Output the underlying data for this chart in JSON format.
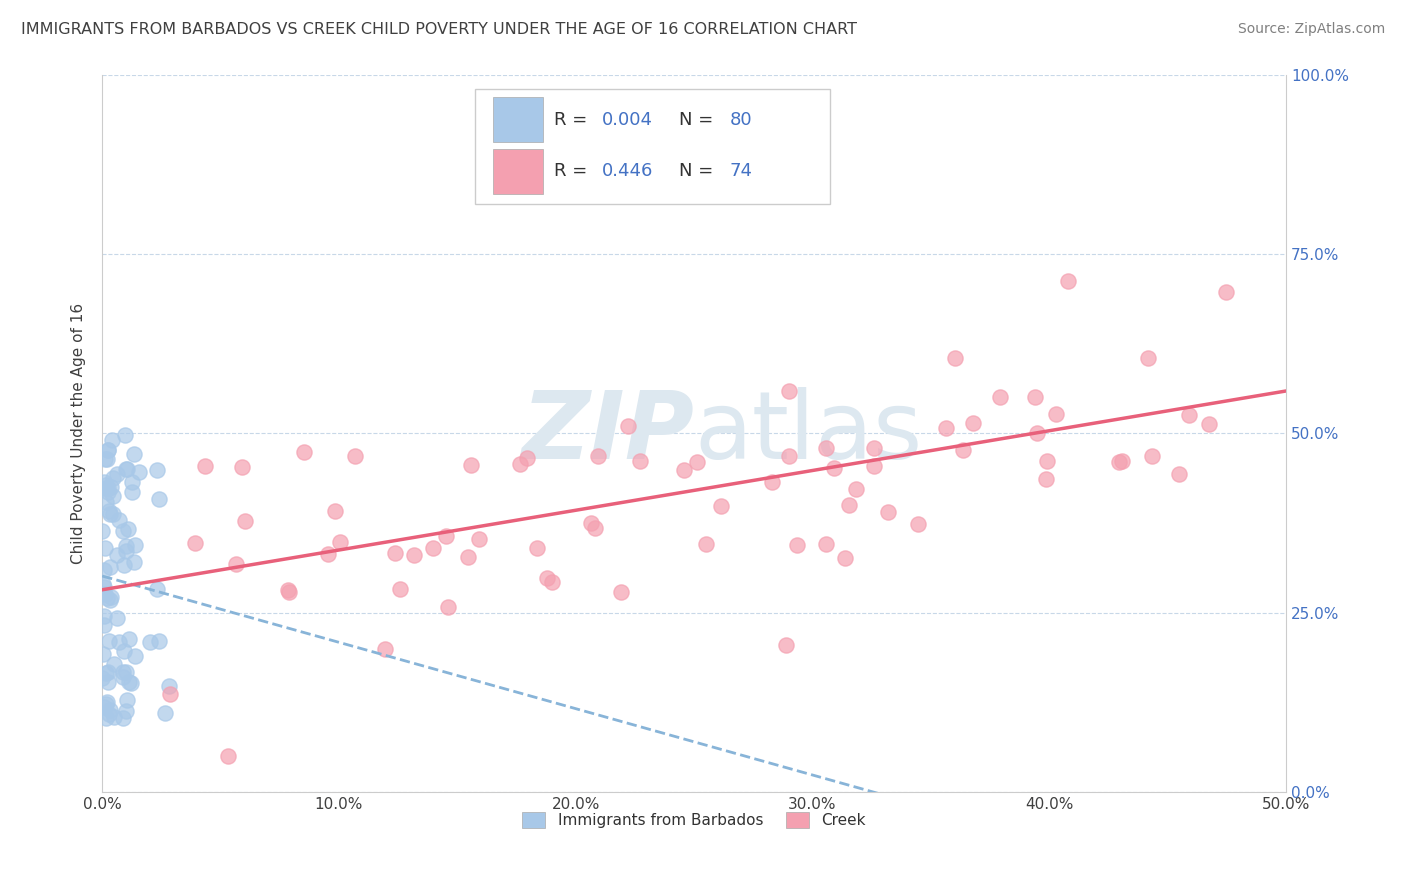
{
  "title": "IMMIGRANTS FROM BARBADOS VS CREEK CHILD POVERTY UNDER THE AGE OF 16 CORRELATION CHART",
  "source": "Source: ZipAtlas.com",
  "ylabel": "Child Poverty Under the Age of 16",
  "legend_labels": [
    "Immigrants from Barbados",
    "Creek"
  ],
  "color_blue": "#a8c8e8",
  "color_pink": "#f4a0b0",
  "line_blue_color": "#88b4d8",
  "line_pink_color": "#e8607a",
  "background_color": "#ffffff",
  "grid_color": "#c8d8e8",
  "right_tick_color": "#4472c4",
  "watermark_color": "#dde8f0",
  "title_color": "#404040",
  "source_color": "#808080"
}
